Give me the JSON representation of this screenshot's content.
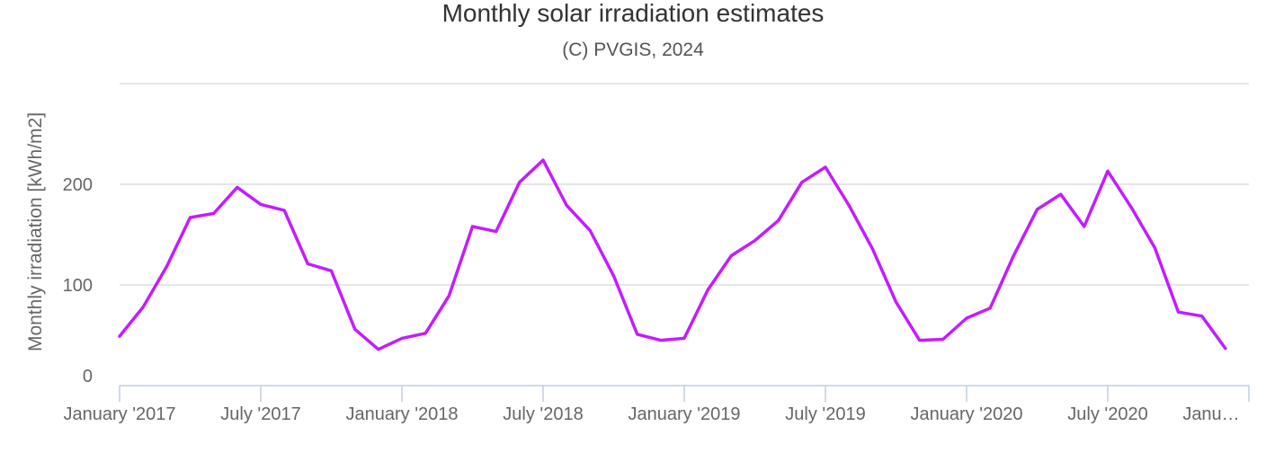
{
  "chart_data": {
    "type": "line",
    "title": "Monthly solar irradiation estimates",
    "subtitle": "(C) PVGIS, 2024",
    "ylabel": "Monthly irradiation [kWh/m2]",
    "xlabel": "",
    "ylim": [
      0,
      300
    ],
    "yticks": [
      0,
      100,
      200
    ],
    "xticks": [
      "January '2017",
      "July '2017",
      "January '2018",
      "July '2018",
      "January '2019",
      "July '2019",
      "January '2020",
      "July '2020",
      "Janu…"
    ],
    "x_start": "2017-01",
    "x_end": "2020-12",
    "grid": true,
    "legend": "none",
    "color": "#c41cff",
    "series": [
      {
        "values": [
          49,
          78,
          118,
          167,
          171,
          197,
          180,
          174,
          121,
          114,
          56,
          36,
          47,
          52,
          89,
          158,
          153,
          202,
          224,
          179,
          154,
          109,
          51,
          45,
          47,
          95,
          129,
          144,
          164,
          202,
          217,
          179,
          136,
          83,
          45,
          46,
          67,
          77,
          129,
          175,
          190,
          158,
          213,
          177,
          137,
          73,
          69,
          37
        ]
      }
    ]
  }
}
